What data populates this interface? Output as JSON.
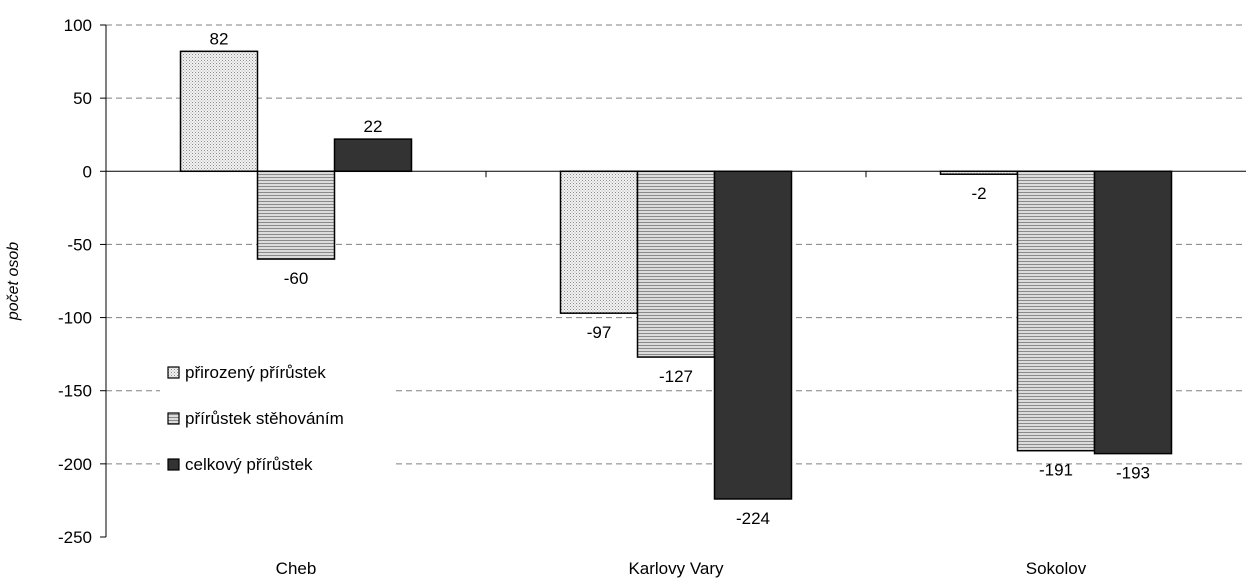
{
  "chart_data": {
    "type": "bar",
    "categories": [
      "Cheb",
      "Karlovy Vary",
      "Sokolov"
    ],
    "series": [
      {
        "name": "přirozený přírůstek",
        "values": [
          82,
          -97,
          -2
        ],
        "pattern": "dotted",
        "color": "#e6e6e6"
      },
      {
        "name": "přírůstek stěhováním",
        "values": [
          -60,
          -127,
          -191
        ],
        "pattern": "lined",
        "color": "#c8c8c8"
      },
      {
        "name": "celkový přírůstek",
        "values": [
          22,
          -224,
          -193
        ],
        "pattern": "solid",
        "color": "#333333"
      }
    ],
    "data_labels": [
      [
        "82",
        "-97",
        "-2"
      ],
      [
        "-60",
        "-127",
        "-191"
      ],
      [
        "22",
        "-224",
        "-193"
      ]
    ],
    "title": "",
    "xlabel": "",
    "ylabel": "počet osob",
    "ylim": [
      -250,
      100
    ],
    "yticks": [
      100,
      50,
      0,
      -50,
      -100,
      -150,
      -200,
      -250
    ],
    "ytick_labels": [
      "100",
      "50",
      "0",
      "-50",
      "-100",
      "-150",
      "-200",
      "-250"
    ],
    "grid": "horizontal dashed",
    "legend_position": "left, inside plot area"
  }
}
